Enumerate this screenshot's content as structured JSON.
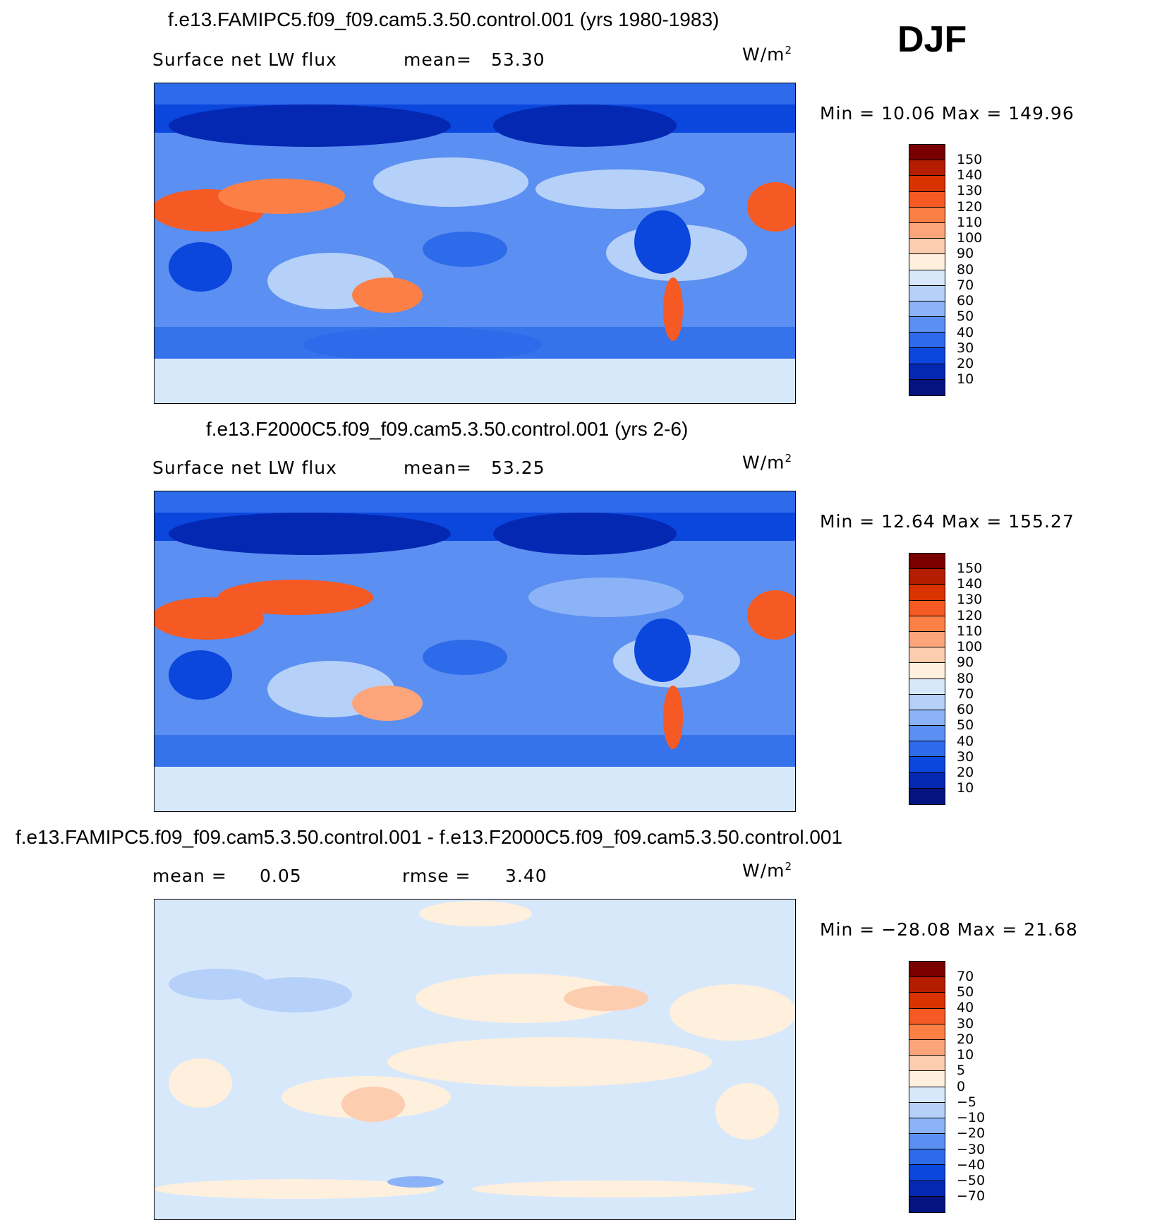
{
  "season": "DJF",
  "panels": [
    {
      "title": "f.e13.FAMIPC5.f09_f09.cam5.3.50.control.001 (yrs 1980-1983)",
      "left_label": "Surface net LW flux",
      "stat_label": "mean=",
      "stat_value": "53.30",
      "units": "W/m",
      "units_sup": "2",
      "minmax": "Min =   10.06  Max  =  149.96",
      "colorbar_labels": [
        "150",
        "140",
        "130",
        "120",
        "110",
        "100",
        "90",
        "80",
        "70",
        "60",
        "50",
        "40",
        "30",
        "20",
        "10"
      ],
      "colors": [
        "#7a0000",
        "#b51d00",
        "#d83300",
        "#f55a24",
        "#fc8046",
        "#fca57a",
        "#fdcdb0",
        "#fef0dd",
        "#d8e8fb",
        "#b6d1f9",
        "#8cb3f7",
        "#5b8ff1",
        "#2d6bea",
        "#0b46dd",
        "#0528b3",
        "#031480"
      ]
    },
    {
      "title": "f.e13.F2000C5.f09_f09.cam5.3.50.control.001 (yrs 2-6)",
      "left_label": "Surface net LW flux",
      "stat_label": "mean=",
      "stat_value": "53.25",
      "units": "W/m",
      "units_sup": "2",
      "minmax": "Min =   12.64  Max  =  155.27",
      "colorbar_labels": [
        "150",
        "140",
        "130",
        "120",
        "110",
        "100",
        "90",
        "80",
        "70",
        "60",
        "50",
        "40",
        "30",
        "20",
        "10"
      ],
      "colors": [
        "#7a0000",
        "#b51d00",
        "#d83300",
        "#f55a24",
        "#fc8046",
        "#fca57a",
        "#fdcdb0",
        "#fef0dd",
        "#d8e8fb",
        "#b6d1f9",
        "#8cb3f7",
        "#5b8ff1",
        "#2d6bea",
        "#0b46dd",
        "#0528b3",
        "#031480"
      ]
    },
    {
      "title": "f.e13.FAMIPC5.f09_f09.cam5.3.50.control.001 - f.e13.F2000C5.f09_f09.cam5.3.50.control.001",
      "left_label": "mean =",
      "left_value": "0.05",
      "stat_label": "rmse =",
      "stat_value": "3.40",
      "units": "W/m",
      "units_sup": "2",
      "minmax": "Min = −28.08  Max  =   21.68",
      "colorbar_labels": [
        "70",
        "50",
        "40",
        "30",
        "20",
        "10",
        "5",
        "0",
        "−5",
        "−10",
        "−20",
        "−30",
        "−40",
        "−50",
        "−70"
      ],
      "colors": [
        "#7a0000",
        "#b51d00",
        "#d83300",
        "#f55a24",
        "#fc8046",
        "#fca57a",
        "#fdcdb0",
        "#fef0dd",
        "#d8e8fb",
        "#b6d1f9",
        "#8cb3f7",
        "#5b8ff1",
        "#2d6bea",
        "#0b46dd",
        "#0528b3",
        "#031480"
      ]
    }
  ]
}
